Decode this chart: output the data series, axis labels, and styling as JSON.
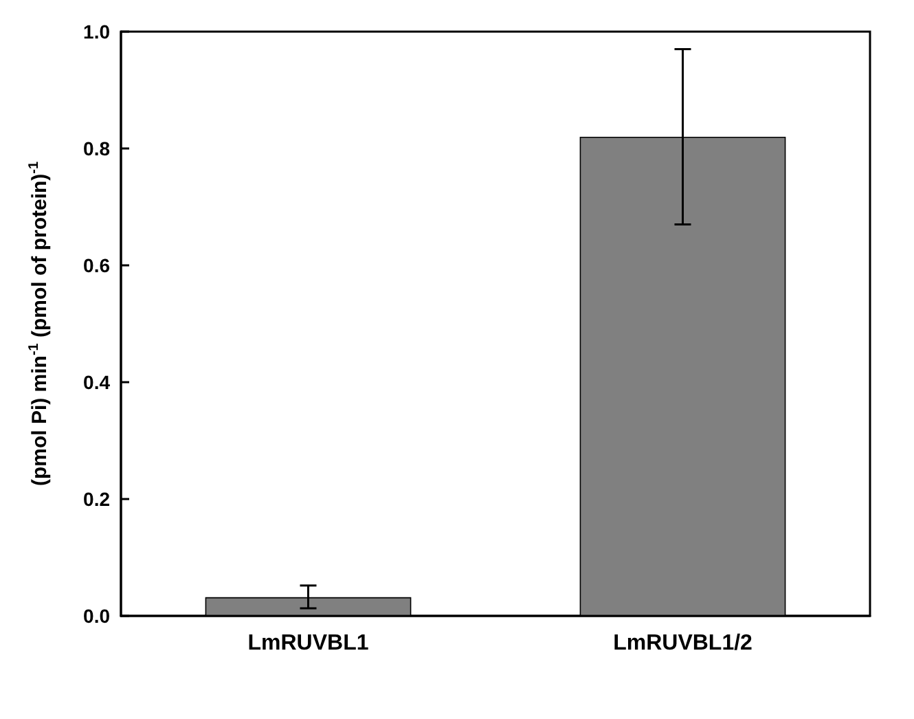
{
  "chart_data": {
    "type": "bar",
    "ylabel": "(pmol Pi) min$^{-1}$ (pmol of protein)$^{-1}$",
    "categories": [
      "LmRUVBL1",
      "LmRUVBL1/2"
    ],
    "values": [
      0.032,
      0.82
    ],
    "errors": [
      [
        0.013,
        0.052
      ],
      [
        0.67,
        0.97
      ]
    ],
    "color": "#808080",
    "ylim": [
      0,
      1.0
    ],
    "yticks": [
      {
        "value": 0,
        "label": "0.0"
      },
      0.2,
      0.4,
      0.6,
      0.8,
      {
        "value": 1,
        "label": "1.0"
      }
    ],
    "grid": false
  }
}
